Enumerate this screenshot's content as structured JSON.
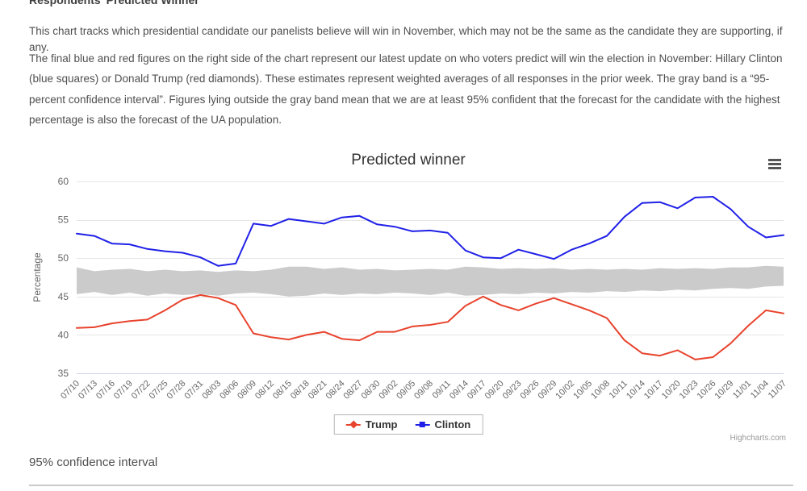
{
  "page": {
    "heading": "Respondents’ Predicted Winner",
    "paragraph1": "This chart tracks which presidential candidate our panelists believe will win in November, which may not be the same as the candidate they are supporting, if any.",
    "paragraph2": "The final blue and red figures on the right side of the chart represent our latest update on who voters predict will win the election in November: Hillary Clinton (blue squares) or Donald Trump (red diamonds). These estimates represent weighted averages of all responses in the prior week. The gray band is a “95-percent confidence interval”. Figures lying outside the gray band mean that we are at least 95% confident that the forecast for the candidate with the highest percentage is also the forecast of the UA population.",
    "footnote": "95% confidence interval"
  },
  "chart": {
    "title": "Predicted winner",
    "credits": "Highcharts.com",
    "menu_icon": "hamburger-icon",
    "colors": {
      "trump": "#e8432d",
      "clinton": "#2020e8",
      "band": "#cbcbcb",
      "grid": "#e6e6e6",
      "x_axis_line": "#ccd6eb",
      "tick_label": "#666666",
      "title_text": "#333333"
    }
  },
  "chart_data": {
    "type": "line",
    "title": "Predicted winner",
    "xlabel": "",
    "ylabel": "Percentage",
    "ylim": [
      35,
      60
    ],
    "yticks": [
      35,
      40,
      45,
      50,
      55,
      60
    ],
    "grid": true,
    "legend_position": "bottom",
    "categories": [
      "07/10",
      "07/13",
      "07/16",
      "07/19",
      "07/22",
      "07/25",
      "07/28",
      "07/31",
      "08/03",
      "08/06",
      "08/09",
      "08/12",
      "08/15",
      "08/18",
      "08/21",
      "08/24",
      "08/27",
      "08/30",
      "09/02",
      "09/05",
      "09/08",
      "09/11",
      "09/14",
      "09/17",
      "09/20",
      "09/23",
      "09/26",
      "09/29",
      "10/02",
      "10/05",
      "10/08",
      "10/11",
      "10/14",
      "10/17",
      "10/20",
      "10/23",
      "10/26",
      "10/29",
      "11/01",
      "11/04",
      "11/07"
    ],
    "series": [
      {
        "name": "Trump",
        "color": "#e8432d",
        "marker": "diamond",
        "values": [
          40.9,
          41.0,
          41.5,
          41.8,
          42.0,
          43.2,
          44.6,
          45.2,
          44.8,
          43.9,
          40.2,
          39.7,
          39.4,
          40.0,
          40.4,
          39.5,
          39.3,
          40.4,
          40.4,
          41.1,
          41.3,
          41.7,
          43.8,
          45.0,
          43.9,
          43.2,
          44.1,
          44.8,
          44.0,
          43.2,
          42.2,
          39.3,
          37.6,
          37.3,
          38.0,
          36.8,
          37.1,
          38.9,
          41.2,
          43.2,
          42.8
        ]
      },
      {
        "name": "Clinton",
        "color": "#2020e8",
        "marker": "square",
        "values": [
          53.2,
          52.9,
          51.9,
          51.8,
          51.2,
          50.9,
          50.7,
          50.1,
          49.0,
          49.3,
          54.5,
          54.2,
          55.1,
          54.8,
          54.5,
          55.3,
          55.5,
          54.4,
          54.1,
          53.5,
          53.6,
          53.3,
          51.0,
          50.1,
          50.0,
          51.1,
          50.5,
          49.9,
          51.1,
          51.9,
          52.9,
          55.4,
          57.2,
          57.3,
          56.5,
          57.9,
          58.0,
          56.4,
          54.1,
          52.7,
          53.0
        ]
      }
    ],
    "band": {
      "name": "95% confidence interval",
      "color": "#cbcbcb",
      "upper": [
        48.8,
        48.3,
        48.5,
        48.6,
        48.3,
        48.5,
        48.3,
        48.4,
        48.2,
        48.4,
        48.3,
        48.5,
        48.9,
        48.9,
        48.6,
        48.8,
        48.5,
        48.6,
        48.4,
        48.5,
        48.6,
        48.5,
        48.9,
        48.8,
        48.6,
        48.7,
        48.6,
        48.7,
        48.5,
        48.6,
        48.5,
        48.6,
        48.5,
        48.7,
        48.6,
        48.7,
        48.6,
        48.8,
        48.8,
        49.0,
        48.9
      ],
      "lower": [
        45.3,
        45.6,
        45.2,
        45.5,
        45.1,
        45.4,
        45.2,
        45.3,
        45.1,
        45.4,
        45.5,
        45.3,
        45.0,
        45.1,
        45.4,
        45.2,
        45.4,
        45.3,
        45.5,
        45.4,
        45.2,
        45.5,
        45.1,
        45.2,
        45.4,
        45.3,
        45.5,
        45.4,
        45.6,
        45.5,
        45.7,
        45.6,
        45.8,
        45.7,
        45.9,
        45.8,
        46.0,
        46.1,
        46.0,
        46.3,
        46.4
      ]
    }
  }
}
